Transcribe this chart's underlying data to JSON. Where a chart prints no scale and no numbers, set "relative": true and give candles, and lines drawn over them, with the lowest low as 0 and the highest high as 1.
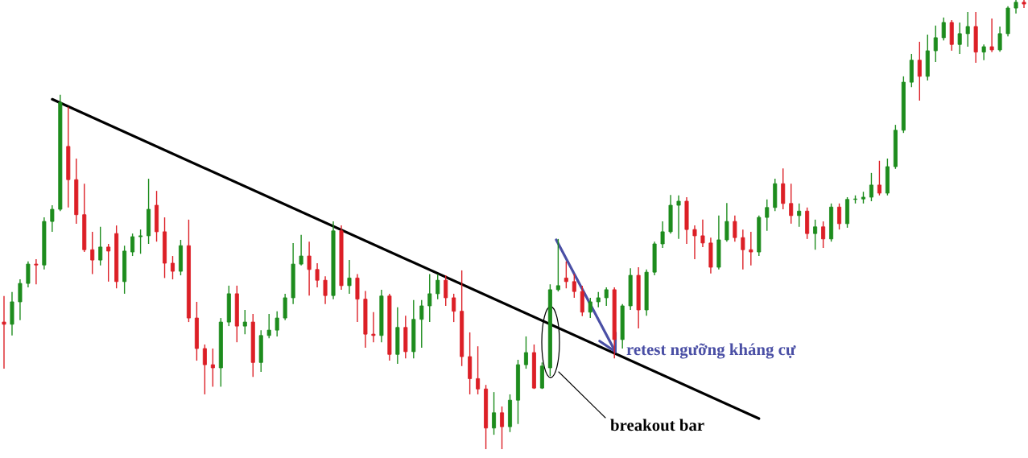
{
  "chart_data": {
    "type": "candlestick",
    "relative": true,
    "categories": [
      null,
      null,
      null,
      null,
      null,
      null,
      null,
      null,
      null,
      null,
      null,
      null,
      null,
      null,
      null,
      null,
      null,
      null,
      null,
      null,
      null,
      null,
      null,
      null,
      null,
      null,
      null,
      null,
      null,
      null,
      null,
      null,
      null,
      null,
      null,
      null,
      null,
      null,
      null,
      null,
      null,
      null,
      null,
      null,
      null,
      null,
      null,
      null,
      null,
      null,
      null,
      null,
      null,
      null,
      null,
      null,
      null,
      null,
      null,
      null,
      null,
      null,
      null,
      null,
      null,
      null,
      null,
      null,
      null,
      null,
      null,
      null,
      null,
      null,
      null,
      null,
      null,
      null,
      null,
      null,
      null,
      null,
      null,
      null,
      null,
      null,
      null,
      null,
      null,
      null,
      null,
      null,
      null,
      null,
      null,
      null,
      null,
      null,
      null,
      null,
      null,
      null,
      null,
      null,
      null,
      null,
      null,
      null,
      null,
      null,
      null,
      null,
      null,
      null,
      null,
      null,
      null,
      null,
      null,
      null,
      null,
      null,
      null,
      null,
      null,
      null,
      null,
      null
    ],
    "ohlc": [
      [
        0.283,
        0.341,
        0.179,
        0.278
      ],
      [
        0.278,
        0.35,
        0.253,
        0.328
      ],
      [
        0.328,
        0.378,
        0.287,
        0.369
      ],
      [
        0.369,
        0.418,
        0.36,
        0.412
      ],
      [
        0.412,
        0.423,
        0.367,
        0.41
      ],
      [
        0.41,
        0.516,
        0.4,
        0.507
      ],
      [
        0.507,
        0.543,
        0.484,
        0.534
      ],
      [
        0.534,
        0.789,
        0.53,
        0.772
      ],
      [
        0.674,
        0.762,
        0.538,
        0.6
      ],
      [
        0.6,
        0.647,
        0.502,
        0.522
      ],
      [
        0.522,
        0.591,
        0.439,
        0.444
      ],
      [
        0.444,
        0.484,
        0.39,
        0.421
      ],
      [
        0.421,
        0.495,
        0.409,
        0.45
      ],
      [
        0.45,
        0.457,
        0.373,
        0.441
      ],
      [
        0.48,
        0.498,
        0.358,
        0.373
      ],
      [
        0.373,
        0.453,
        0.346,
        0.441
      ],
      [
        0.439,
        0.48,
        0.43,
        0.473
      ],
      [
        0.473,
        0.489,
        0.435,
        0.475
      ],
      [
        0.475,
        0.602,
        0.457,
        0.534
      ],
      [
        0.543,
        0.575,
        0.462,
        0.484
      ],
      [
        0.484,
        0.516,
        0.381,
        0.414
      ],
      [
        0.414,
        0.43,
        0.378,
        0.396
      ],
      [
        0.396,
        0.466,
        0.387,
        0.453
      ],
      [
        0.453,
        0.511,
        0.283,
        0.292
      ],
      [
        0.292,
        0.328,
        0.197,
        0.224
      ],
      [
        0.224,
        0.233,
        0.122,
        0.188
      ],
      [
        0.188,
        0.224,
        0.139,
        0.181
      ],
      [
        0.181,
        0.292,
        0.139,
        0.283
      ],
      [
        0.283,
        0.364,
        0.274,
        0.346
      ],
      [
        0.346,
        0.364,
        0.238,
        0.274
      ],
      [
        0.274,
        0.31,
        0.256,
        0.283
      ],
      [
        0.283,
        0.301,
        0.161,
        0.193
      ],
      [
        0.193,
        0.265,
        0.172,
        0.253
      ],
      [
        0.253,
        0.301,
        0.247,
        0.265
      ],
      [
        0.265,
        0.307,
        0.251,
        0.292
      ],
      [
        0.292,
        0.346,
        0.287,
        0.337
      ],
      [
        0.337,
        0.459,
        0.323,
        0.412
      ],
      [
        0.412,
        0.477,
        0.409,
        0.43
      ],
      [
        0.43,
        0.462,
        0.342,
        0.4
      ],
      [
        0.4,
        0.414,
        0.36,
        0.376
      ],
      [
        0.376,
        0.385,
        0.323,
        0.342
      ],
      [
        0.342,
        0.507,
        0.334,
        0.486
      ],
      [
        0.486,
        0.498,
        0.355,
        0.364
      ],
      [
        0.364,
        0.421,
        0.346,
        0.381
      ],
      [
        0.381,
        0.39,
        0.283,
        0.334
      ],
      [
        0.334,
        0.352,
        0.226,
        0.256
      ],
      [
        0.256,
        0.305,
        0.238,
        0.253
      ],
      [
        0.253,
        0.355,
        0.238,
        0.341
      ],
      [
        0.341,
        0.346,
        0.197,
        0.211
      ],
      [
        0.211,
        0.316,
        0.19,
        0.271
      ],
      [
        0.271,
        0.297,
        0.202,
        0.217
      ],
      [
        0.217,
        0.332,
        0.202,
        0.289
      ],
      [
        0.289,
        0.332,
        0.226,
        0.319
      ],
      [
        0.319,
        0.39,
        0.283,
        0.346
      ],
      [
        0.346,
        0.39,
        0.334,
        0.376
      ],
      [
        0.376,
        0.387,
        0.319,
        0.337
      ],
      [
        0.337,
        0.346,
        0.283,
        0.307
      ],
      [
        0.307,
        0.398,
        0.185,
        0.206
      ],
      [
        0.206,
        0.26,
        0.122,
        0.157
      ],
      [
        0.157,
        0.229,
        0.122,
        0.134
      ],
      [
        0.134,
        0.143,
        0,
        0.047
      ],
      [
        0.047,
        0.127,
        0.032,
        0.081
      ],
      [
        0.081,
        0.095,
        0,
        0.05
      ],
      [
        0.05,
        0.122,
        0.038,
        0.109
      ],
      [
        0.109,
        0.199,
        0.056,
        0.188
      ],
      [
        0.188,
        0.251,
        0.179,
        0.215
      ],
      [
        0.215,
        0.233,
        0.134,
        0.136
      ],
      [
        0.136,
        0.193,
        0.134,
        0.185
      ],
      [
        0.181,
        0.367,
        0.163,
        0.355
      ],
      [
        0.355,
        0.468,
        0.351,
        0.364
      ],
      [
        0.381,
        0.418,
        0.358,
        0.373
      ],
      [
        0.373,
        0.39,
        0.337,
        0.351
      ],
      [
        0.351,
        0.364,
        0.296,
        0.305
      ],
      [
        0.305,
        0.337,
        0.292,
        0.328
      ],
      [
        0.328,
        0.35,
        0.316,
        0.337
      ],
      [
        0.337,
        0.36,
        0.319,
        0.355
      ],
      [
        0.355,
        0.36,
        0.202,
        0.244
      ],
      [
        0.244,
        0.323,
        0.224,
        0.319
      ],
      [
        0.319,
        0.403,
        0.31,
        0.387
      ],
      [
        0.387,
        0.405,
        0.269,
        0.31
      ],
      [
        0.31,
        0.4,
        0.297,
        0.394
      ],
      [
        0.394,
        0.462,
        0.387,
        0.457
      ],
      [
        0.457,
        0.507,
        0.448,
        0.484
      ],
      [
        0.484,
        0.566,
        0.48,
        0.543
      ],
      [
        0.543,
        0.565,
        0.468,
        0.552
      ],
      [
        0.552,
        0.561,
        0.457,
        0.489
      ],
      [
        0.489,
        0.498,
        0.423,
        0.475
      ],
      [
        0.475,
        0.511,
        0.45,
        0.459
      ],
      [
        0.459,
        0.471,
        0.391,
        0.405
      ],
      [
        0.405,
        0.52,
        0.4,
        0.466
      ],
      [
        0.466,
        0.548,
        0.462,
        0.507
      ],
      [
        0.507,
        0.52,
        0.462,
        0.471
      ],
      [
        0.471,
        0.489,
        0.4,
        0.444
      ],
      [
        0.444,
        0.484,
        0.409,
        0.439
      ],
      [
        0.439,
        0.52,
        0.43,
        0.516
      ],
      [
        0.516,
        0.556,
        0.486,
        0.538
      ],
      [
        0.538,
        0.602,
        0.53,
        0.591
      ],
      [
        0.591,
        0.625,
        0.534,
        0.547
      ],
      [
        0.547,
        0.591,
        0.502,
        0.52
      ],
      [
        0.52,
        0.547,
        0.495,
        0.53
      ],
      [
        0.53,
        0.538,
        0.468,
        0.48
      ],
      [
        0.48,
        0.511,
        0.444,
        0.495
      ],
      [
        0.495,
        0.507,
        0.448,
        0.468
      ],
      [
        0.468,
        0.547,
        0.462,
        0.539
      ],
      [
        0.539,
        0.547,
        0.489,
        0.502
      ],
      [
        0.502,
        0.561,
        0.493,
        0.556
      ],
      [
        0.556,
        0.565,
        0.547,
        0.557
      ],
      [
        0.557,
        0.573,
        0.547,
        0.561
      ],
      [
        0.561,
        0.615,
        0.552,
        0.588
      ],
      [
        0.588,
        0.642,
        0.565,
        0.57
      ],
      [
        0.57,
        0.647,
        0.565,
        0.629
      ],
      [
        0.629,
        0.722,
        0.624,
        0.71
      ],
      [
        0.71,
        0.83,
        0.704,
        0.817
      ],
      [
        0.817,
        0.88,
        0.806,
        0.866
      ],
      [
        0.866,
        0.907,
        0.776,
        0.83
      ],
      [
        0.83,
        0.923,
        0.821,
        0.887
      ],
      [
        0.887,
        0.943,
        0.862,
        0.916
      ],
      [
        0.916,
        0.961,
        0.91,
        0.95
      ],
      [
        0.95,
        0.955,
        0.887,
        0.901
      ],
      [
        0.901,
        0.95,
        0.88,
        0.925
      ],
      [
        0.925,
        0.973,
        0.896,
        0.941
      ],
      [
        0.941,
        0.973,
        0.86,
        0.884
      ],
      [
        0.884,
        0.901,
        0.866,
        0.896
      ],
      [
        0.896,
        0.959,
        0.884,
        0.889
      ],
      [
        0.889,
        0.941,
        0.885,
        0.925
      ],
      [
        0.925,
        0.986,
        0.919,
        0.982
      ],
      [
        0.982,
        1,
        0.97,
        0.995
      ],
      [
        0.995,
        1,
        0.982,
        0.991
      ]
    ],
    "colors": [
      "#dc1f26",
      "#1d8c1d",
      "#1d8c1d",
      "#1d8c1d",
      "#dc1f26",
      "#1d8c1d",
      "#1d8c1d",
      "#1d8c1d",
      "#dc1f26",
      "#dc1f26",
      "#dc1f26",
      "#dc1f26",
      "#1d8c1d",
      "#dc1f26",
      "#dc1f26",
      "#1d8c1d",
      "#1d8c1d",
      "#1d8c1d",
      "#1d8c1d",
      "#dc1f26",
      "#dc1f26",
      "#dc1f26",
      "#1d8c1d",
      "#dc1f26",
      "#dc1f26",
      "#dc1f26",
      "#dc1f26",
      "#1d8c1d",
      "#1d8c1d",
      "#dc1f26",
      "#1d8c1d",
      "#dc1f26",
      "#1d8c1d",
      "#1d8c1d",
      "#1d8c1d",
      "#1d8c1d",
      "#1d8c1d",
      "#1d8c1d",
      "#dc1f26",
      "#dc1f26",
      "#dc1f26",
      "#1d8c1d",
      "#dc1f26",
      "#1d8c1d",
      "#dc1f26",
      "#dc1f26",
      "#dc1f26",
      "#1d8c1d",
      "#dc1f26",
      "#1d8c1d",
      "#dc1f26",
      "#1d8c1d",
      "#1d8c1d",
      "#1d8c1d",
      "#1d8c1d",
      "#dc1f26",
      "#dc1f26",
      "#dc1f26",
      "#dc1f26",
      "#dc1f26",
      "#dc1f26",
      "#1d8c1d",
      "#dc1f26",
      "#1d8c1d",
      "#1d8c1d",
      "#1d8c1d",
      "#dc1f26",
      "#1d8c1d",
      "#1d8c1d",
      "#1d8c1d",
      "#dc1f26",
      "#dc1f26",
      "#dc1f26",
      "#1d8c1d",
      "#1d8c1d",
      "#1d8c1d",
      "#dc1f26",
      "#1d8c1d",
      "#1d8c1d",
      "#dc1f26",
      "#1d8c1d",
      "#1d8c1d",
      "#1d8c1d",
      "#1d8c1d",
      "#1d8c1d",
      "#dc1f26",
      "#dc1f26",
      "#dc1f26",
      "#dc1f26",
      "#1d8c1d",
      "#1d8c1d",
      "#dc1f26",
      "#dc1f26",
      "#dc1f26",
      "#1d8c1d",
      "#1d8c1d",
      "#1d8c1d",
      "#dc1f26",
      "#dc1f26",
      "#1d8c1d",
      "#dc1f26",
      "#1d8c1d",
      "#dc1f26",
      "#1d8c1d",
      "#dc1f26",
      "#1d8c1d",
      "#1d8c1d",
      "#1d8c1d",
      "#1d8c1d",
      "#dc1f26",
      "#1d8c1d",
      "#1d8c1d",
      "#1d8c1d",
      "#1d8c1d",
      "#dc1f26",
      "#1d8c1d",
      "#1d8c1d",
      "#1d8c1d",
      "#dc1f26",
      "#1d8c1d",
      "#1d8c1d",
      "#dc1f26",
      "#1d8c1d",
      "#dc1f26",
      "#1d8c1d",
      "#1d8c1d",
      "#1d8c1d",
      "#dc1f26"
    ],
    "series": [
      {
        "type": "line",
        "color": "#000000",
        "values": [
          null,
          null,
          null,
          null,
          null,
          null,
          0.779,
          null,
          null,
          null,
          null,
          null,
          null,
          null,
          null,
          null,
          null,
          null,
          null,
          null,
          null,
          null,
          null,
          null,
          null,
          null,
          null,
          null,
          null,
          null,
          null,
          null,
          null,
          null,
          null,
          null,
          null,
          null,
          null,
          null,
          null,
          null,
          null,
          null,
          null,
          null,
          null,
          null,
          null,
          null,
          null,
          null,
          null,
          null,
          null,
          null,
          null,
          null,
          null,
          null,
          null,
          null,
          null,
          null,
          null,
          null,
          null,
          null,
          null,
          null,
          null,
          null,
          null,
          null,
          null,
          null,
          null,
          null,
          null,
          null,
          null,
          null,
          null,
          null,
          null,
          null,
          null,
          null,
          null,
          null,
          null,
          null,
          null,
          null,
          0.068,
          null,
          null,
          null,
          null,
          null,
          null,
          null,
          null,
          null,
          null,
          null,
          null,
          null,
          null,
          null,
          null,
          null,
          null,
          null,
          null,
          null,
          null,
          null,
          null,
          null,
          null,
          null,
          null,
          null,
          null,
          null,
          null,
          null
        ]
      }
    ],
    "annotations": [
      "retest ngưỡng kháng cự",
      "breakout bar"
    ]
  }
}
